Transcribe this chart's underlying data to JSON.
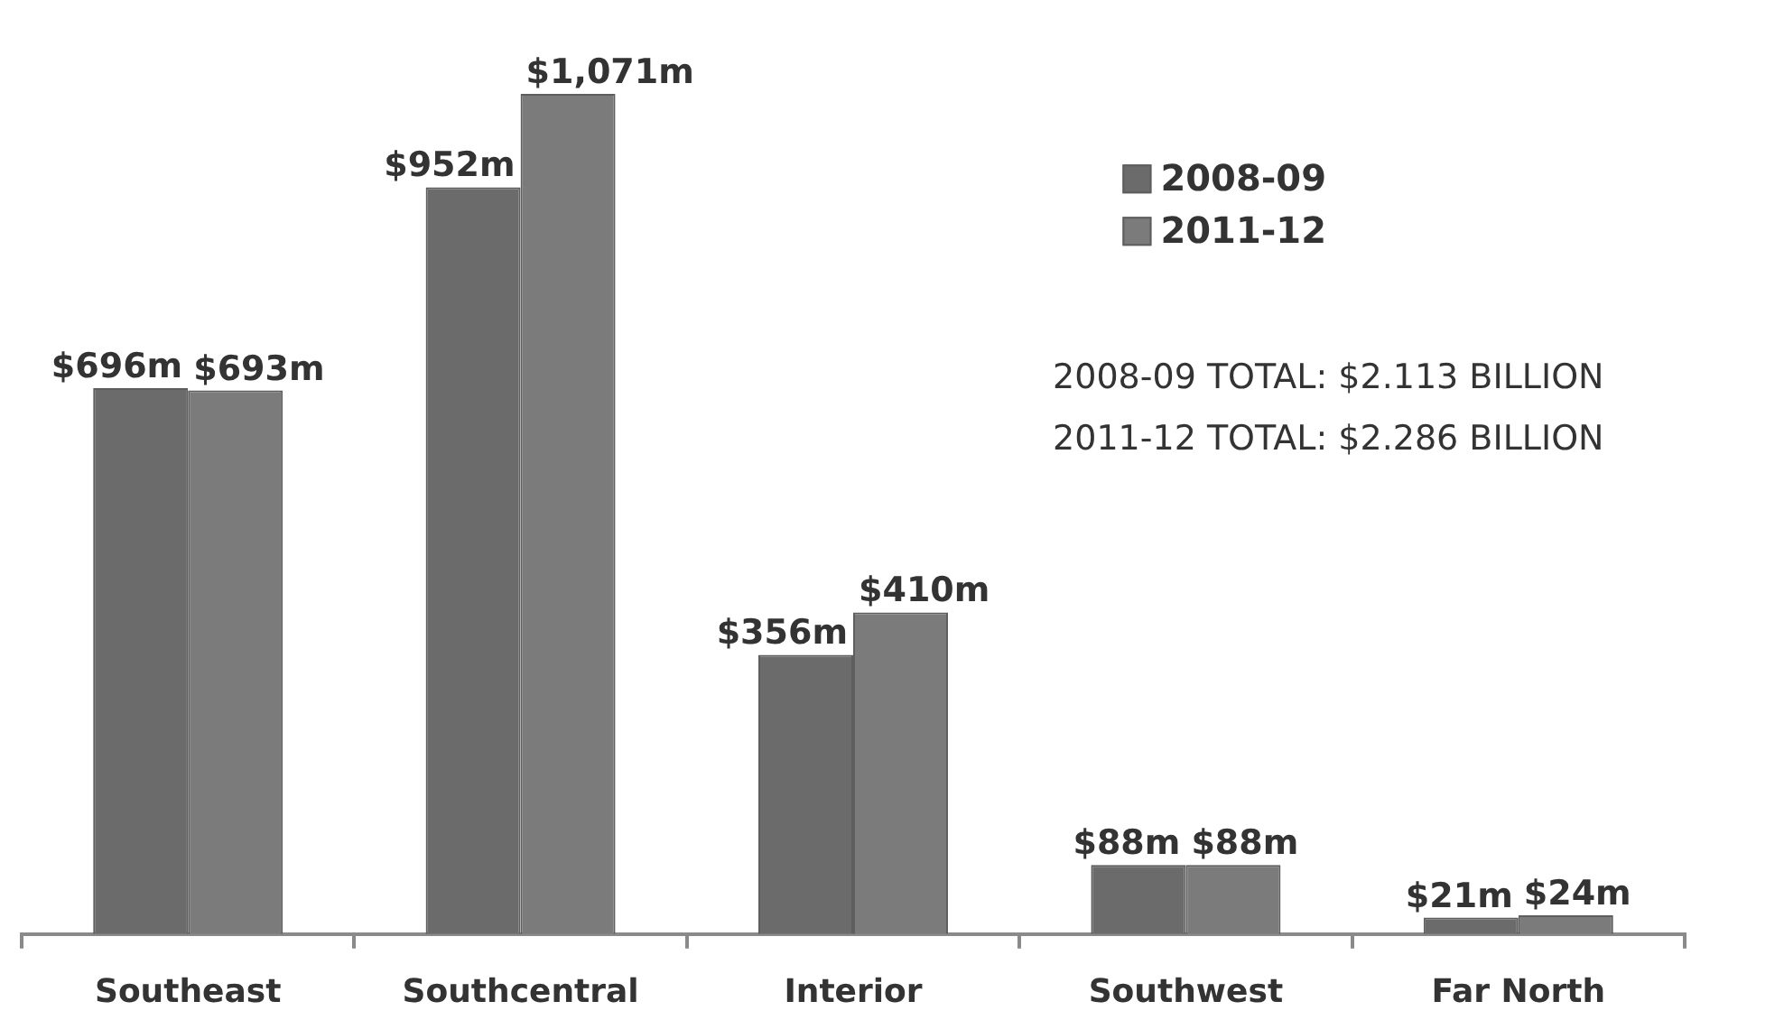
{
  "chart_data": {
    "type": "bar",
    "categories": [
      "Southeast",
      "Southcentral",
      "Interior",
      "Southwest",
      "Far North"
    ],
    "series": [
      {
        "name": "2008-09",
        "color": "#6b6b6b",
        "values": [
          696,
          952,
          356,
          88,
          21
        ],
        "value_labels": [
          "$696m",
          "$952m",
          "$356m",
          "$88m",
          "$21m"
        ]
      },
      {
        "name": "2011-12",
        "color": "#7b7b7b",
        "values": [
          693,
          1071,
          410,
          88,
          24
        ],
        "value_labels": [
          "$693m",
          "$1,071m",
          "$410m",
          "$88m",
          "$24m"
        ]
      }
    ],
    "annotations": [
      "2008-09 TOTAL: $2.113 BILLION",
      "2011-12 TOTAL: $2.286 BILLION"
    ],
    "legend": "top right"
  }
}
